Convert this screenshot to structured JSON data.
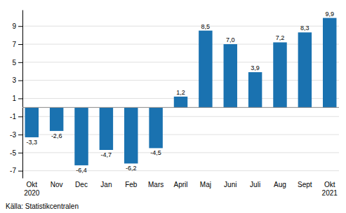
{
  "chart_data": {
    "type": "bar",
    "categories": [
      "Okt\n2020",
      "Nov",
      "Dec",
      "Jan",
      "Feb",
      "Mars",
      "April",
      "Maj",
      "Juni",
      "Juli",
      "Aug",
      "Sept",
      "Okt\n2021"
    ],
    "values": [
      -3.3,
      -2.6,
      -6.4,
      -4.7,
      -6.2,
      -4.5,
      1.2,
      8.5,
      7.0,
      3.9,
      7.2,
      8.3,
      9.9
    ],
    "value_labels": [
      "-3,3",
      "-2,6",
      "-6,4",
      "-4,7",
      "-6,2",
      "-4,5",
      "1,2",
      "8,5",
      "7,0",
      "3,9",
      "7,2",
      "8,3",
      "9,9"
    ],
    "color": "#1a72b0",
    "ylim": [
      -7.8,
      10.8
    ],
    "yticks": [
      -7,
      -5,
      -3,
      -1,
      1,
      3,
      5,
      7,
      9
    ],
    "grid": true,
    "data_labels": true,
    "source": "Källa: Statistikcentralen"
  }
}
